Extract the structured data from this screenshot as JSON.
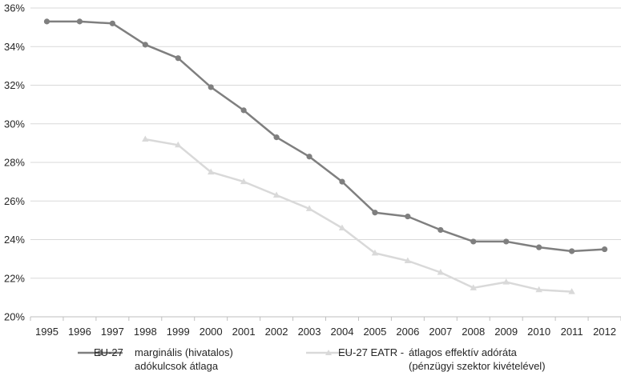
{
  "chart_data": {
    "type": "line",
    "title": "",
    "xlabel": "",
    "ylabel": "",
    "x": [
      "1995",
      "1996",
      "1997",
      "1998",
      "1999",
      "2000",
      "2001",
      "2002",
      "2003",
      "2004",
      "2005",
      "2006",
      "2007",
      "2008",
      "2009",
      "2010",
      "2011",
      "2012"
    ],
    "ylim": [
      20,
      36
    ],
    "yticks": [
      "20%",
      "22%",
      "24%",
      "26%",
      "28%",
      "30%",
      "32%",
      "34%",
      "36%"
    ],
    "grid": true,
    "legend_position": "bottom",
    "series": [
      {
        "name": "EU-27",
        "description": [
          "marginális (hivatalos)",
          "adókulcsok átlaga"
        ],
        "color": "#7f7f7f",
        "marker": "circle",
        "values": [
          35.3,
          35.3,
          35.2,
          34.1,
          33.4,
          31.9,
          30.7,
          29.3,
          28.3,
          27.0,
          25.4,
          25.2,
          24.5,
          23.9,
          23.9,
          23.6,
          23.4,
          23.5
        ]
      },
      {
        "name": "EU-27 EATR -",
        "description": [
          "átlagos effektív adóráta",
          "(pénzügyi szektor kivételével)"
        ],
        "color": "#d9d9d9",
        "marker": "triangle",
        "values": [
          null,
          null,
          null,
          29.2,
          28.9,
          27.5,
          27.0,
          26.3,
          25.6,
          24.6,
          23.3,
          22.9,
          22.3,
          21.5,
          21.8,
          21.4,
          21.3,
          null
        ]
      }
    ]
  }
}
